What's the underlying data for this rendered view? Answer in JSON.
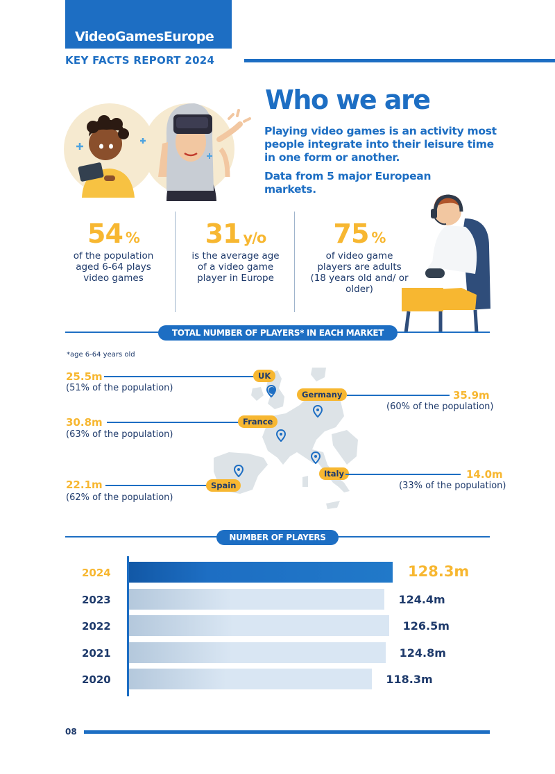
{
  "header": {
    "brand": "VideoGamesEurope",
    "report_title": "KEY FACTS REPORT 2024"
  },
  "intro": {
    "title": "Who we are",
    "text1": "Playing video games is an activity most people integrate into their leisure time in one form or another.",
    "text2": "Data from 5 major European markets."
  },
  "stats": [
    {
      "value": "54",
      "unit": "%",
      "desc": "of the population aged 6-64 plays video games"
    },
    {
      "value": "31",
      "unit": "y/o",
      "desc": "is the average age of a video game player in Europe"
    },
    {
      "value": "75",
      "unit": "%",
      "desc": "of video game players are adults (18 years old and/ or older)"
    }
  ],
  "markets_section": {
    "title": "TOTAL NUMBER OF PLAYERS* IN EACH MARKET",
    "footnote": "*age 6-64 years old",
    "markets": [
      {
        "name": "UK",
        "value": "25.5m",
        "pct": "(51% of the population)"
      },
      {
        "name": "Germany",
        "value": "35.9m",
        "pct": "(60% of the population)"
      },
      {
        "name": "France",
        "value": "30.8m",
        "pct": "(63% of the population)"
      },
      {
        "name": "Italy",
        "value": "14.0m",
        "pct": "(33% of the population)"
      },
      {
        "name": "Spain",
        "value": "22.1m",
        "pct": "(62% of the population)"
      }
    ]
  },
  "players_section": {
    "title": "NUMBER OF PLAYERS"
  },
  "chart_data": {
    "type": "bar",
    "orientation": "horizontal",
    "categories": [
      "2024",
      "2023",
      "2022",
      "2021",
      "2020"
    ],
    "values": [
      128.3,
      124.4,
      126.5,
      124.8,
      118.3
    ],
    "value_labels": [
      "128.3m",
      "124.4m",
      "126.5m",
      "124.8m",
      "118.3m"
    ],
    "highlight": "2024",
    "colors": {
      "highlight": "#1d6ec3",
      "other": "#d9e6f3",
      "highlight_label": "#f7b731"
    }
  },
  "footer": {
    "page_number": "08"
  },
  "colors": {
    "primary": "#1d6ec3",
    "accent": "#f7b731",
    "text": "#1e3a6b"
  }
}
